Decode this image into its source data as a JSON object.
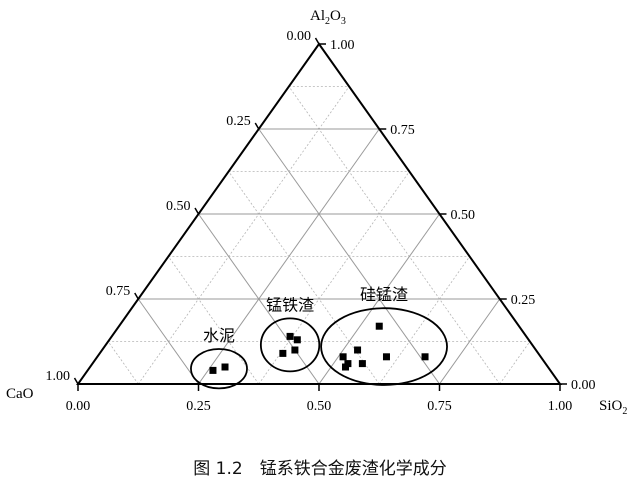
{
  "caption": "图 1.2　锰系铁合金废渣化学成分",
  "chart_data": {
    "type": "ternary",
    "components": {
      "top": {
        "name": "Al",
        "sub1": "2",
        "mid": "O",
        "sub2": "3"
      },
      "left": {
        "name": "CaO"
      },
      "right": {
        "name": "SiO",
        "sub1": "2"
      }
    },
    "ticks": [
      0.0,
      0.25,
      0.5,
      0.75,
      1.0
    ],
    "tick_labels": [
      "0.00",
      "0.25",
      "0.50",
      "0.75",
      "1.00"
    ],
    "grid": true,
    "groups": [
      {
        "name": "水泥",
        "points": [
          {
            "sio2": 0.26,
            "al2o3": 0.04
          },
          {
            "sio2": 0.28,
            "al2o3": 0.05
          }
        ]
      },
      {
        "name": "锰铁渣",
        "points": [
          {
            "sio2": 0.37,
            "al2o3": 0.14
          },
          {
            "sio2": 0.39,
            "al2o3": 0.13
          },
          {
            "sio2": 0.38,
            "al2o3": 0.09
          },
          {
            "sio2": 0.4,
            "al2o3": 0.1
          }
        ]
      },
      {
        "name": "硅锰渣",
        "points": [
          {
            "sio2": 0.54,
            "al2o3": 0.17
          },
          {
            "sio2": 0.53,
            "al2o3": 0.1
          },
          {
            "sio2": 0.51,
            "al2o3": 0.08
          },
          {
            "sio2": 0.53,
            "al2o3": 0.06
          },
          {
            "sio2": 0.53,
            "al2o3": 0.05
          },
          {
            "sio2": 0.56,
            "al2o3": 0.06
          },
          {
            "sio2": 0.6,
            "al2o3": 0.08
          },
          {
            "sio2": 0.68,
            "al2o3": 0.08
          }
        ]
      }
    ]
  }
}
